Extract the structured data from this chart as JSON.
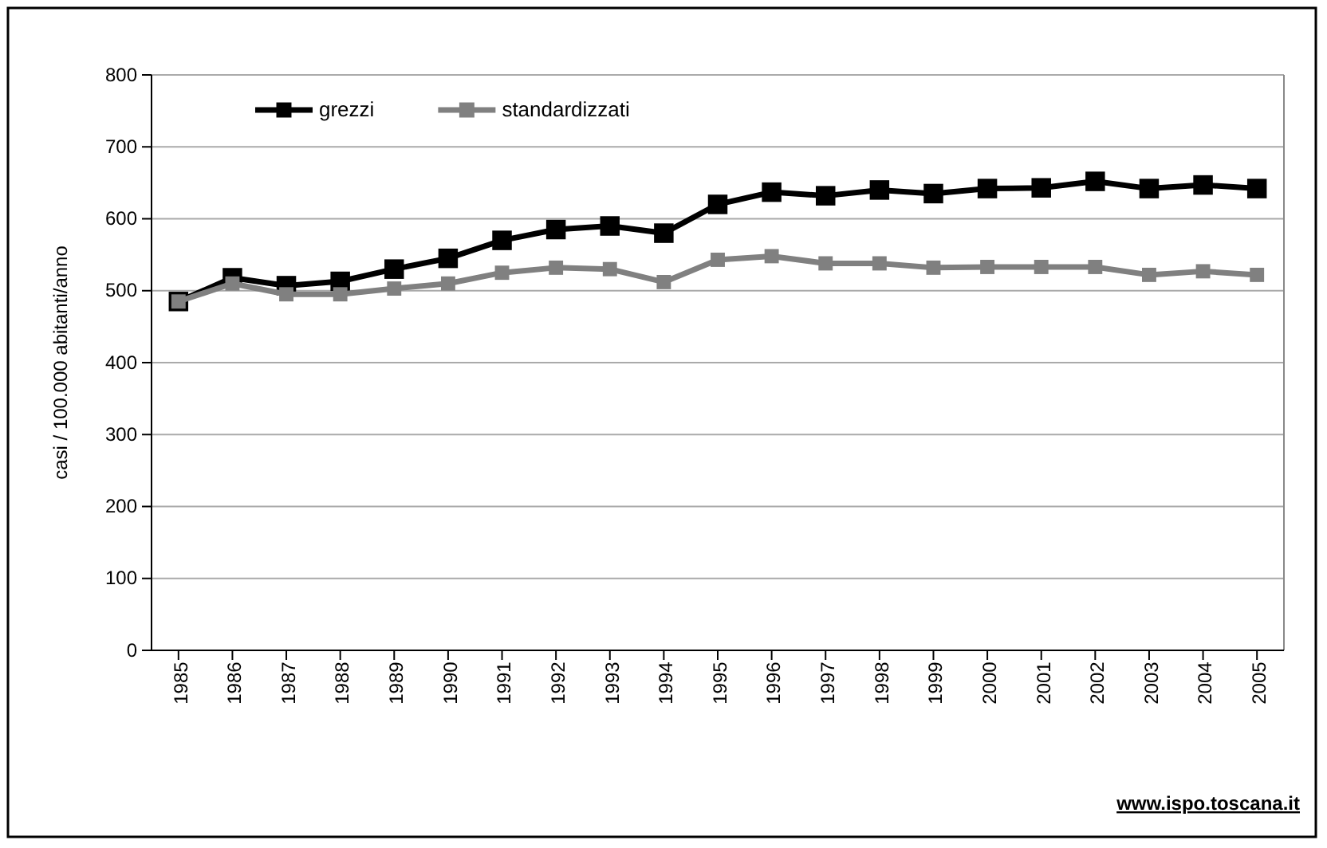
{
  "chart_data": {
    "type": "line",
    "ylabel": "casi / 100.000 abitanti/anno",
    "categories": [
      "1985",
      "1986",
      "1987",
      "1988",
      "1989",
      "1990",
      "1991",
      "1992",
      "1993",
      "1994",
      "1995",
      "1996",
      "1997",
      "1998",
      "1999",
      "2000",
      "2001",
      "2002",
      "2003",
      "2004",
      "2005"
    ],
    "series": [
      {
        "name": "grezzi",
        "color": "#000000",
        "values": [
          485,
          518,
          507,
          513,
          530,
          545,
          570,
          585,
          590,
          580,
          620,
          637,
          632,
          640,
          635,
          642,
          643,
          652,
          642,
          647,
          642
        ]
      },
      {
        "name": "standardizzati",
        "color": "#808080",
        "values": [
          485,
          510,
          495,
          495,
          503,
          510,
          525,
          532,
          530,
          512,
          543,
          548,
          538,
          538,
          532,
          533,
          533,
          533,
          522,
          527,
          522
        ]
      }
    ],
    "ylim": [
      0,
      800
    ],
    "yticks": [
      0,
      100,
      200,
      300,
      400,
      500,
      600,
      700,
      800
    ],
    "grid": "y",
    "legend": "top left",
    "marker": "square",
    "line_style": "solid",
    "annotations": [
      "www.ispo.toscana.it"
    ]
  }
}
